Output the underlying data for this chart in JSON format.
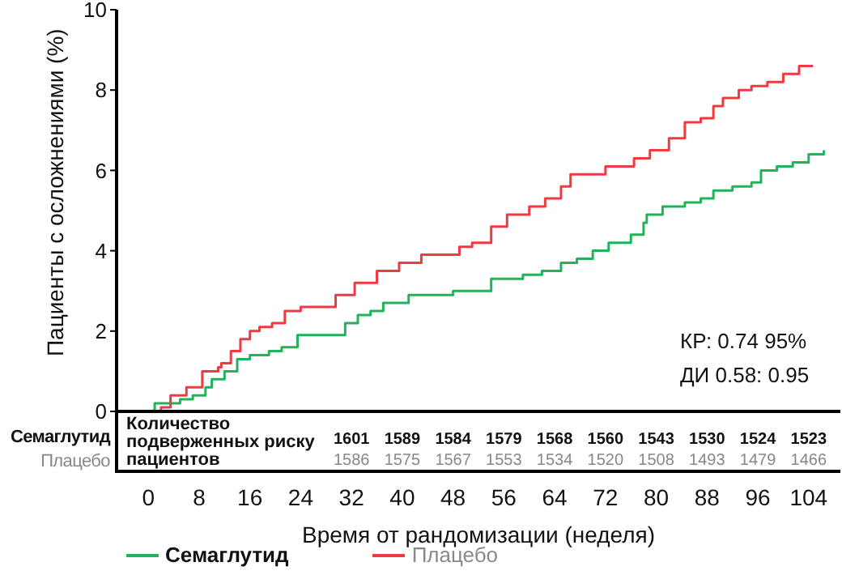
{
  "chart_data": {
    "type": "step",
    "xlabel": "Время от рандомизации (неделя)",
    "ylabel": "Пациенты с осложнениями (%)",
    "xlim": [
      -5,
      109
    ],
    "xticks": [
      0,
      8,
      16,
      24,
      32,
      40,
      48,
      56,
      64,
      72,
      80,
      88,
      96,
      104
    ],
    "ylim": [
      0,
      10
    ],
    "yticks": [
      0,
      2,
      4,
      6,
      8,
      10
    ],
    "grid": false,
    "legend": "bottom",
    "line_style": "solid",
    "marker": "none",
    "series": [
      {
        "name": "Семаглутид",
        "color": "#22b35a",
        "x": [
          0,
          1,
          3.5,
          5,
          7,
          9,
          10,
          12,
          14,
          16,
          19,
          21,
          23.5,
          24.5,
          29,
          31,
          33,
          35,
          37,
          39,
          41,
          48,
          51,
          54,
          59,
          62,
          65,
          67.5,
          70,
          72.5,
          76,
          78,
          78.5,
          80.5,
          81,
          84.5,
          87,
          89,
          92,
          95,
          96.5,
          99,
          101.5,
          104,
          106.4
        ],
        "values": [
          0,
          0.2,
          0.2,
          0.3,
          0.4,
          0.6,
          0.8,
          1,
          1.3,
          1.4,
          1.5,
          1.6,
          1.9,
          1.9,
          1.9,
          2.2,
          2.4,
          2.5,
          2.7,
          2.7,
          2.9,
          3,
          3,
          3.3,
          3.4,
          3.5,
          3.7,
          3.8,
          4,
          4.2,
          4.4,
          4.7,
          4.9,
          4.9,
          5.1,
          5.2,
          5.3,
          5.5,
          5.6,
          5.7,
          6,
          6.1,
          6.2,
          6.4,
          6.5
        ]
      },
      {
        "name": "Плацебо",
        "color": "#ee3b43",
        "x": [
          1,
          2,
          3.5,
          6,
          8.5,
          11,
          11.5,
          13,
          14.5,
          16,
          17.5,
          19.5,
          21.5,
          24,
          28,
          29.5,
          32.5,
          36,
          39.5,
          43,
          46,
          49,
          51,
          54,
          56.5,
          60,
          62.5,
          65,
          66.5,
          71,
          72,
          75.5,
          76.5,
          79,
          82,
          84.5,
          87,
          89,
          90.5,
          93,
          95,
          97.5,
          100,
          102.5,
          104.7
        ],
        "values": [
          0,
          0.1,
          0.4,
          0.6,
          1,
          1.1,
          1.2,
          1.5,
          1.8,
          2,
          2.1,
          2.2,
          2.5,
          2.6,
          2.6,
          2.9,
          3.2,
          3.5,
          3.7,
          3.9,
          3.9,
          4.1,
          4.2,
          4.6,
          4.9,
          5.1,
          5.3,
          5.6,
          5.9,
          5.9,
          6.1,
          6.1,
          6.3,
          6.5,
          6.8,
          7.2,
          7.3,
          7.6,
          7.8,
          8,
          8.1,
          8.2,
          8.4,
          8.6,
          8.6
        ]
      }
    ],
    "annotations": [
      "КР: 0.74 95%",
      "ДИ 0.58: 0.95",
      "Количество подверженных риску пациентов",
      "1601",
      "1589",
      "1584",
      "1579",
      "1568",
      "1560",
      "1543",
      "1530",
      "1524",
      "1523",
      "1586",
      "1575",
      "1567",
      "1553",
      "1534",
      "1520",
      "1508",
      "1493",
      "1479",
      "1466"
    ]
  }
}
